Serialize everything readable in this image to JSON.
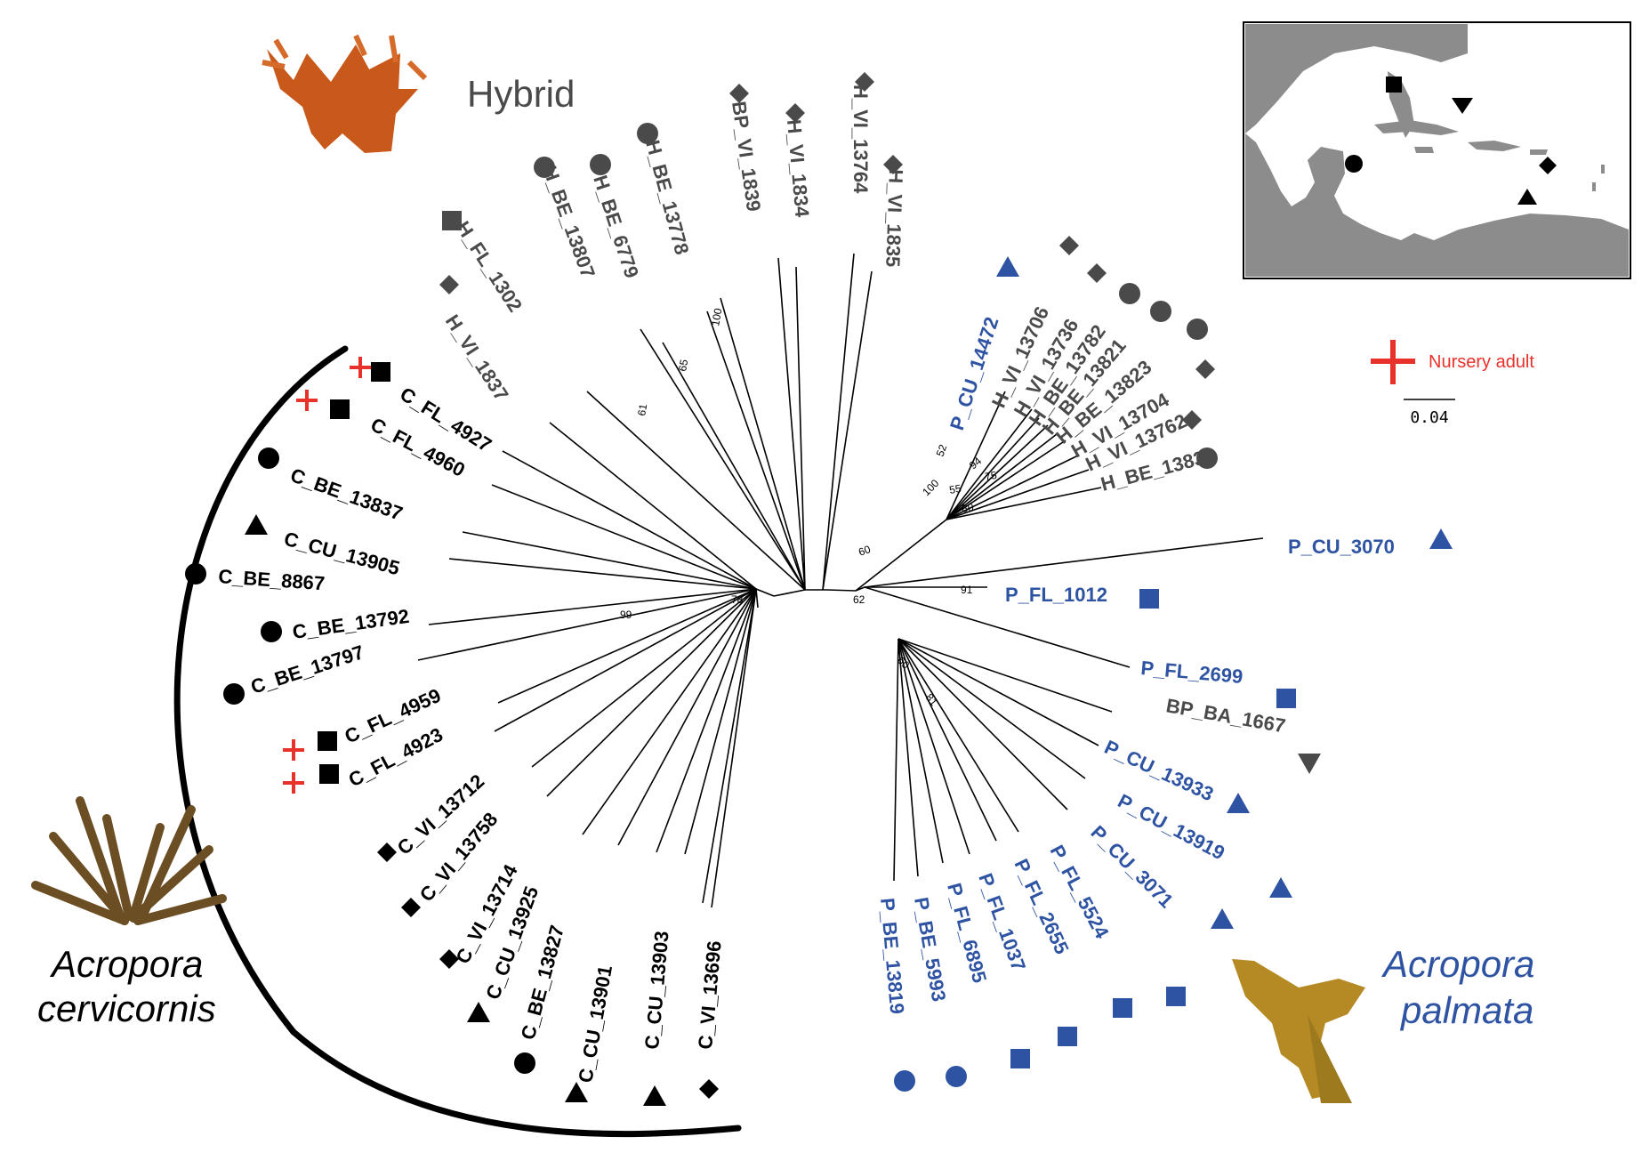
{
  "colors": {
    "cerv": "#000000",
    "palm": "#2e53a3",
    "hyb": "#4a4a4a",
    "nursery": "#e8312a"
  },
  "labels": {
    "hybrid": "Hybrid",
    "cerv_line1": "Acropora",
    "cerv_line2": "cervicornis",
    "palm_line1": "Acropora",
    "palm_line2": "palmata",
    "nursery": "Nursery adult",
    "scale": "0.04"
  },
  "map_legend": [
    {
      "shape": "square",
      "region": "Florida"
    },
    {
      "shape": "triangle-down",
      "region": "Bahamas"
    },
    {
      "shape": "circle",
      "region": "Belize"
    },
    {
      "shape": "diamond",
      "region": "Virgin Islands"
    },
    {
      "shape": "triangle",
      "region": "Curacao"
    }
  ],
  "bootstrap": [
    "99",
    "78",
    "61",
    "65",
    "100",
    "60",
    "52",
    "100",
    "94",
    "55",
    "75",
    "80",
    "62",
    "91",
    "60",
    "81"
  ],
  "tips": [
    {
      "label": "C_FL_4927",
      "group": "cerv",
      "shape": "square",
      "nursery": true
    },
    {
      "label": "C_FL_4960",
      "group": "cerv",
      "shape": "square",
      "nursery": true
    },
    {
      "label": "C_BE_13837",
      "group": "cerv",
      "shape": "circle"
    },
    {
      "label": "C_CU_13905",
      "group": "cerv",
      "shape": "triangle"
    },
    {
      "label": "C_BE_8867",
      "group": "cerv",
      "shape": "circle"
    },
    {
      "label": "C_BE_13792",
      "group": "cerv",
      "shape": "circle"
    },
    {
      "label": "C_BE_13797",
      "group": "cerv",
      "shape": "circle"
    },
    {
      "label": "C_FL_4959",
      "group": "cerv",
      "shape": "square",
      "nursery": true
    },
    {
      "label": "C_FL_4923",
      "group": "cerv",
      "shape": "square",
      "nursery": true
    },
    {
      "label": "C_VI_13712",
      "group": "cerv",
      "shape": "diamond"
    },
    {
      "label": "C_VI_13758",
      "group": "cerv",
      "shape": "diamond"
    },
    {
      "label": "C_VI_13714",
      "group": "cerv",
      "shape": "diamond"
    },
    {
      "label": "C_CU_13925",
      "group": "cerv",
      "shape": "triangle"
    },
    {
      "label": "C_BE_13827",
      "group": "cerv",
      "shape": "circle"
    },
    {
      "label": "C_CU_13901",
      "group": "cerv",
      "shape": "triangle"
    },
    {
      "label": "C_CU_13903",
      "group": "cerv",
      "shape": "triangle"
    },
    {
      "label": "C_VI_13696",
      "group": "cerv",
      "shape": "diamond"
    },
    {
      "label": "H_VI_1837",
      "group": "hyb",
      "shape": "diamond"
    },
    {
      "label": "H_FL_1302",
      "group": "hyb",
      "shape": "square"
    },
    {
      "label": "H_BE_13807",
      "group": "hyb",
      "shape": "circle"
    },
    {
      "label": "H_BE_6779",
      "group": "hyb",
      "shape": "circle"
    },
    {
      "label": "H_BE_13778",
      "group": "hyb",
      "shape": "circle"
    },
    {
      "label": "BP_VI_1839",
      "group": "hyb",
      "shape": "diamond"
    },
    {
      "label": "H_VI_1834",
      "group": "hyb",
      "shape": "diamond"
    },
    {
      "label": "H_VI_13764",
      "group": "hyb",
      "shape": "diamond"
    },
    {
      "label": "H_VI_1835",
      "group": "hyb",
      "shape": "diamond"
    },
    {
      "label": "P_CU_14472",
      "group": "palm",
      "shape": "triangle"
    },
    {
      "label": "H_VI_13706",
      "group": "hyb",
      "shape": "diamond"
    },
    {
      "label": "H_VI_13736",
      "group": "hyb",
      "shape": "diamond"
    },
    {
      "label": "H_BE_13782",
      "group": "hyb",
      "shape": "circle"
    },
    {
      "label": "H_BE_13821",
      "group": "hyb",
      "shape": "circle"
    },
    {
      "label": "H_BE_13823",
      "group": "hyb",
      "shape": "circle"
    },
    {
      "label": "H_VI_13704",
      "group": "hyb",
      "shape": "diamond"
    },
    {
      "label": "H_VI_13762",
      "group": "hyb",
      "shape": "diamond"
    },
    {
      "label": "H_BE_13833",
      "group": "hyb",
      "shape": "circle"
    },
    {
      "label": "P_CU_3070",
      "group": "palm",
      "shape": "triangle"
    },
    {
      "label": "P_FL_1012",
      "group": "palm",
      "shape": "square"
    },
    {
      "label": "P_FL_2699",
      "group": "palm",
      "shape": "square"
    },
    {
      "label": "BP_BA_1667",
      "group": "hyb",
      "shape": "triangle-down"
    },
    {
      "label": "P_CU_13933",
      "group": "palm",
      "shape": "triangle"
    },
    {
      "label": "P_CU_13919",
      "group": "palm",
      "shape": "triangle"
    },
    {
      "label": "P_CU_3071",
      "group": "palm",
      "shape": "triangle"
    },
    {
      "label": "P_FL_5524",
      "group": "palm",
      "shape": "square"
    },
    {
      "label": "P_FL_2655",
      "group": "palm",
      "shape": "square"
    },
    {
      "label": "P_FL_1037",
      "group": "palm",
      "shape": "square"
    },
    {
      "label": "P_FL_6895",
      "group": "palm",
      "shape": "square"
    },
    {
      "label": "P_BE_5993",
      "group": "palm",
      "shape": "circle"
    },
    {
      "label": "P_BE_13819",
      "group": "palm",
      "shape": "circle"
    }
  ]
}
